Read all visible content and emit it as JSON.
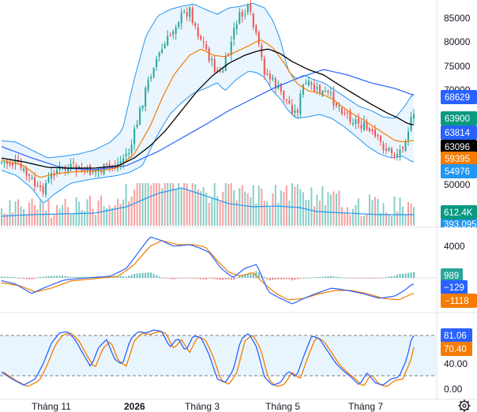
{
  "price_axis": {
    "labels": [
      "85000",
      "80000",
      "75000",
      "70000",
      "50000"
    ]
  },
  "price_badges": [
    {
      "id": "bb-upper",
      "label": "68629",
      "color": "#2962ff"
    },
    {
      "id": "last-price",
      "label": "63900",
      "color": "#089981"
    },
    {
      "id": "ma-long",
      "label": "63814",
      "color": "#2962ff"
    },
    {
      "id": "ma-mid",
      "label": "63096",
      "color": "#000000"
    },
    {
      "id": "ema",
      "label": "59395",
      "color": "#f57c00"
    },
    {
      "id": "bb-lower",
      "label": "54976",
      "color": "#2196f3"
    }
  ],
  "volume_badges": [
    {
      "id": "volume",
      "label": "612.4K",
      "color": "#089981"
    },
    {
      "id": "volume-ma",
      "label": "393.095",
      "color": "#2196f3"
    }
  ],
  "macd_axis": {
    "labels": [
      "4000"
    ]
  },
  "macd_badges": [
    {
      "id": "histogram",
      "label": "989",
      "color": "#26a69a"
    },
    {
      "id": "macd-line",
      "label": "−129",
      "color": "#2962ff"
    },
    {
      "id": "signal-line",
      "label": "−1118",
      "color": "#f57c00"
    }
  ],
  "stoch_axis": {
    "labels": [
      "40.00",
      "0.00"
    ]
  },
  "stoch_badges": [
    {
      "id": "k-line",
      "label": "81.06",
      "color": "#2962ff"
    },
    {
      "id": "d-line",
      "label": "70.40",
      "color": "#f57c00"
    }
  ],
  "time_axis": {
    "labels": [
      {
        "text": "Tháng 11",
        "bold": false
      },
      {
        "text": "2026",
        "bold": true
      },
      {
        "text": "Tháng 3",
        "bold": false
      },
      {
        "text": "Tháng 5",
        "bold": false
      },
      {
        "text": "Tháng 7",
        "bold": false
      }
    ]
  },
  "settings_icon": "gear-icon",
  "colors": {
    "up": "#26a69a",
    "down": "#ef5350",
    "band_fill": "#e3f2fd",
    "band_line": "#2196f3",
    "ema": "#f57c00",
    "ma_mid": "#000000",
    "ma_long": "#2962ff"
  }
}
